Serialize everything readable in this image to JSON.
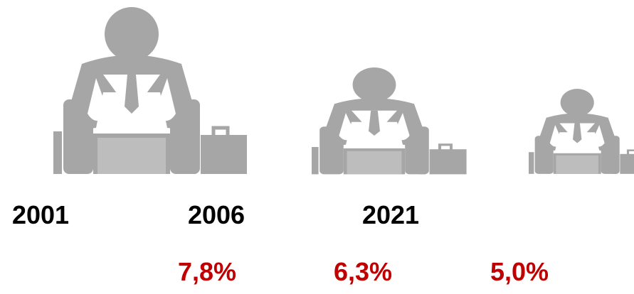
{
  "years": [
    "2001",
    "2006",
    "2021"
  ],
  "rates": [
    "7,8%",
    "6,3%",
    "5,0%"
  ]
}
